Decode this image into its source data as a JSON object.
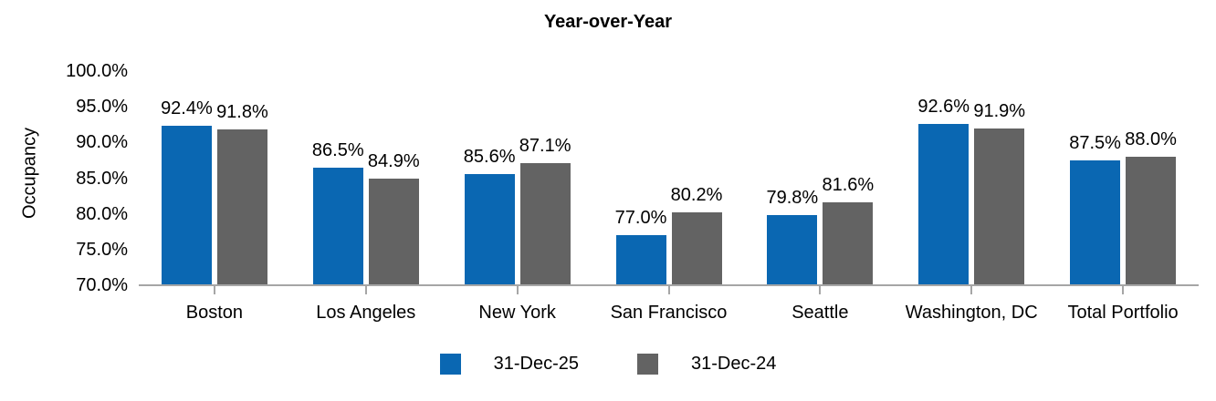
{
  "chart_data": {
    "type": "bar",
    "title": "Year-over-Year",
    "ylabel": "Occupancy",
    "xlabel": "",
    "ylim": [
      70,
      100
    ],
    "ytick_step": 5,
    "ytick_format": "0.0%",
    "grid": false,
    "legend_position": "bottom",
    "axis_color": "#a6a6a6",
    "text_color": "#000000",
    "background_color": "#ffffff",
    "categories": [
      "Boston",
      "Los Angeles",
      "New York",
      "San Francisco",
      "Seattle",
      "Washington, DC",
      "Total Portfolio"
    ],
    "series": [
      {
        "name": "31-Dec-25",
        "color": "#0a67b2",
        "values": [
          92.4,
          86.5,
          85.6,
          77.0,
          79.8,
          92.6,
          87.5
        ]
      },
      {
        "name": "31-Dec-24",
        "color": "#636363",
        "values": [
          91.8,
          84.9,
          87.1,
          80.2,
          81.6,
          91.9,
          88.0
        ]
      }
    ]
  }
}
